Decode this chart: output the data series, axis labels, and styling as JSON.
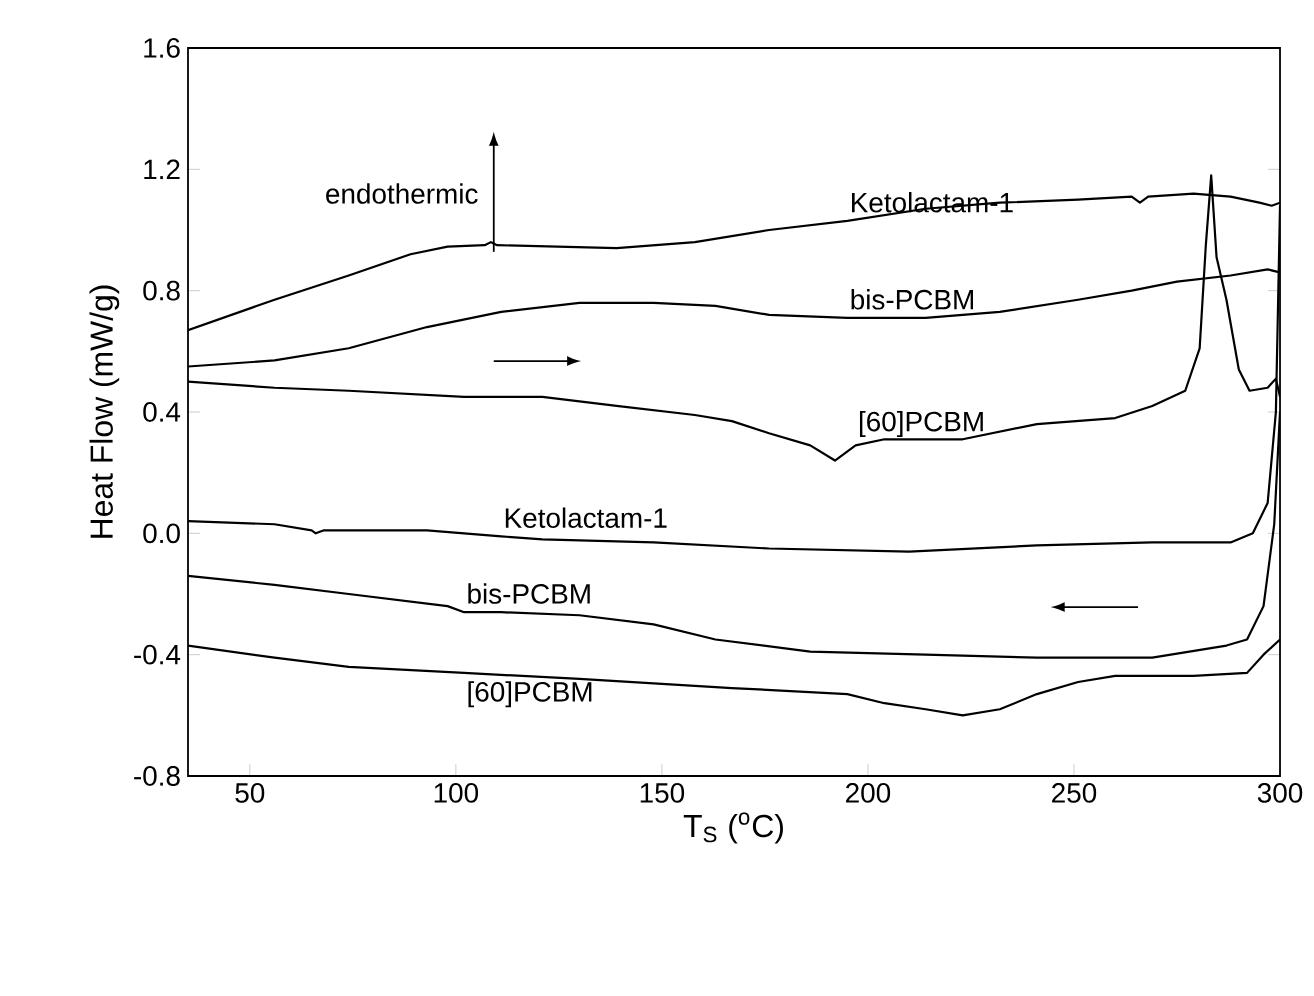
{
  "chart_data": {
    "type": "line",
    "xlabel": "T$_{S}$ ($^{o}$C)",
    "ylabel": "Heat Flow (mW/g)",
    "annotations": [
      "endothermic"
    ],
    "xlim": [
      35,
      300
    ],
    "ylim": [
      -0.8,
      1.6
    ],
    "xticks": [
      50,
      100,
      150,
      200,
      250,
      300
    ],
    "yticks": [
      {
        "value": -0.8,
        "label": "-0.8"
      },
      {
        "value": -0.4,
        "label": "-0.4"
      },
      {
        "value": 0,
        "label": "0.0"
      },
      {
        "value": 0.4,
        "label": "0.4"
      },
      {
        "value": 0.8,
        "label": "0.8"
      },
      {
        "value": 1.2,
        "label": "1.2"
      },
      {
        "value": 1.6,
        "label": "1.6"
      }
    ],
    "series": [
      {
        "name": "Ketolactam-1",
        "color": "#000000",
        "x": [
          35,
          56,
          74,
          89,
          98,
          107,
          108.5,
          110,
          139,
          158,
          176,
          195,
          214,
          232,
          251,
          264,
          266,
          268,
          279,
          288,
          295,
          298,
          300
        ],
        "values": [
          0.67,
          0.77,
          0.85,
          0.92,
          0.945,
          0.95,
          0.96,
          0.95,
          0.94,
          0.96,
          1.0,
          1.03,
          1.07,
          1.09,
          1.1,
          1.11,
          1.09,
          1.11,
          1.12,
          1.11,
          1.09,
          1.08,
          1.09
        ]
      },
      {
        "name": "bis-PCBM",
        "color": "#000000",
        "x": [
          35,
          56,
          74,
          93,
          111,
          130,
          148,
          163,
          176,
          195,
          214,
          232,
          251,
          264,
          275,
          288,
          297,
          300
        ],
        "values": [
          0.55,
          0.57,
          0.61,
          0.68,
          0.73,
          0.76,
          0.76,
          0.75,
          0.72,
          0.71,
          0.71,
          0.73,
          0.77,
          0.8,
          0.83,
          0.85,
          0.87,
          0.86
        ]
      },
      {
        "name": "[60]PCBM",
        "color": "#000000",
        "x": [
          35,
          56,
          74,
          102,
          121,
          139,
          158,
          167,
          176,
          186,
          192,
          197,
          204,
          223,
          241,
          260,
          269,
          277,
          280.5,
          282,
          283.3,
          284.6,
          287,
          290,
          292.6,
          297,
          299,
          300
        ],
        "values": [
          0.5,
          0.48,
          0.47,
          0.45,
          0.45,
          0.42,
          0.39,
          0.37,
          0.33,
          0.29,
          0.24,
          0.29,
          0.31,
          0.31,
          0.36,
          0.38,
          0.42,
          0.47,
          0.61,
          0.95,
          1.18,
          0.91,
          0.77,
          0.54,
          0.47,
          0.48,
          0.51,
          0.45
        ]
      },
      {
        "name": "Ketolactam-1",
        "color": "#000000",
        "x": [
          35,
          56,
          65,
          66,
          68,
          93,
          111,
          121,
          148,
          176,
          210,
          241,
          269,
          288,
          293.4,
          297,
          299,
          300
        ],
        "values": [
          0.04,
          0.03,
          0.01,
          0.0,
          0.01,
          0.01,
          -0.01,
          -0.02,
          -0.03,
          -0.05,
          -0.06,
          -0.04,
          -0.03,
          -0.03,
          0.0,
          0.1,
          0.4,
          1.08
        ]
      },
      {
        "name": "bis-PCBM",
        "color": "#000000",
        "x": [
          35,
          56,
          74,
          98,
          102,
          111,
          130,
          148,
          163,
          186,
          214,
          241,
          269,
          287,
          292,
          296,
          298.6,
          300
        ],
        "values": [
          -0.14,
          -0.17,
          -0.2,
          -0.24,
          -0.26,
          -0.26,
          -0.27,
          -0.3,
          -0.35,
          -0.39,
          -0.4,
          -0.41,
          -0.41,
          -0.37,
          -0.35,
          -0.24,
          0.03,
          0.4
        ]
      },
      {
        "name": "[60]PCBM",
        "color": "#000000",
        "x": [
          35,
          56,
          74,
          102,
          130,
          167,
          195,
          204,
          214,
          223,
          232,
          241,
          251,
          260,
          279,
          292,
          296,
          300
        ],
        "values": [
          -0.37,
          -0.41,
          -0.44,
          -0.46,
          -0.48,
          -0.51,
          -0.53,
          -0.56,
          -0.58,
          -0.6,
          -0.58,
          -0.53,
          -0.49,
          -0.47,
          -0.47,
          -0.46,
          -0.4,
          -0.35
        ]
      }
    ]
  }
}
